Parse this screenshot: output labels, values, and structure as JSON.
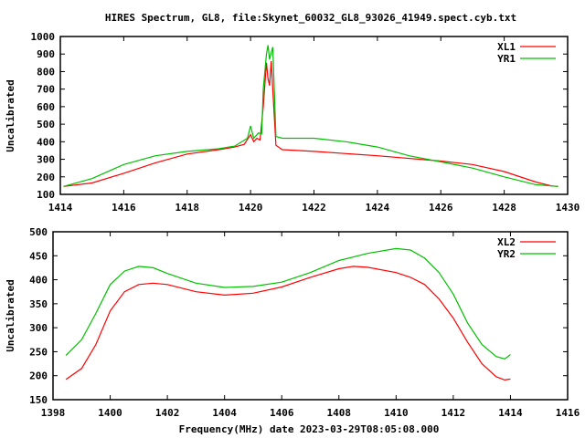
{
  "chart_data": [
    {
      "type": "line",
      "title": "HIRES Spectrum, GL8, file:Skynet_60032_GL8_93026_41949.spect.cyb.txt",
      "xlabel": "",
      "ylabel": "Uncalibrated",
      "xlim": [
        1414,
        1430
      ],
      "ylim": [
        100,
        1000
      ],
      "xticks": [
        1414,
        1416,
        1418,
        1420,
        1422,
        1424,
        1426,
        1428,
        1430
      ],
      "yticks": [
        100,
        200,
        300,
        400,
        500,
        600,
        700,
        800,
        900,
        1000
      ],
      "legend_position": "top-right",
      "series": [
        {
          "name": "XL1",
          "color": "#ff0000",
          "x": [
            1414.1,
            1415,
            1416,
            1417,
            1418,
            1419,
            1419.5,
            1419.8,
            1420,
            1420.1,
            1420.2,
            1420.3,
            1420.4,
            1420.5,
            1420.55,
            1420.6,
            1420.65,
            1420.7,
            1420.8,
            1421,
            1422,
            1424,
            1426,
            1427,
            1428,
            1429,
            1429.5,
            1429.7
          ],
          "y": [
            145,
            165,
            220,
            280,
            330,
            355,
            370,
            385,
            440,
            400,
            420,
            410,
            600,
            850,
            760,
            720,
            860,
            700,
            380,
            355,
            345,
            320,
            290,
            270,
            230,
            170,
            148,
            145
          ]
        },
        {
          "name": "YR1",
          "color": "#00c000",
          "x": [
            1414.1,
            1415,
            1416,
            1417,
            1418,
            1419,
            1419.5,
            1419.9,
            1420,
            1420.1,
            1420.25,
            1420.35,
            1420.4,
            1420.5,
            1420.55,
            1420.6,
            1420.7,
            1420.8,
            1421,
            1422,
            1423,
            1424,
            1425,
            1426,
            1427,
            1428,
            1429,
            1429.7
          ],
          "y": [
            145,
            190,
            270,
            320,
            345,
            360,
            375,
            420,
            490,
            420,
            450,
            445,
            700,
            900,
            950,
            870,
            940,
            430,
            420,
            420,
            400,
            370,
            320,
            285,
            250,
            200,
            155,
            145
          ]
        }
      ]
    },
    {
      "type": "line",
      "xlabel": "Frequency(MHz) date 2023-03-29T08:05:08.000",
      "ylabel": "Uncalibrated",
      "xlim": [
        1398,
        1416
      ],
      "ylim": [
        150,
        500
      ],
      "xticks": [
        1398,
        1400,
        1402,
        1404,
        1406,
        1408,
        1410,
        1412,
        1414,
        1416
      ],
      "yticks": [
        150,
        200,
        250,
        300,
        350,
        400,
        450,
        500
      ],
      "legend_position": "top-right",
      "series": [
        {
          "name": "XL2",
          "color": "#ff0000",
          "x": [
            1398.45,
            1399,
            1399.5,
            1400,
            1400.5,
            1401,
            1401.5,
            1402,
            1403,
            1404,
            1405,
            1406,
            1407,
            1408,
            1408.5,
            1409,
            1410,
            1410.5,
            1411,
            1411.5,
            1412,
            1412.5,
            1413,
            1413.5,
            1413.8,
            1414
          ],
          "y": [
            192,
            215,
            265,
            335,
            375,
            390,
            393,
            390,
            375,
            368,
            372,
            385,
            405,
            423,
            428,
            426,
            415,
            405,
            390,
            360,
            320,
            270,
            225,
            198,
            191,
            193
          ]
        },
        {
          "name": "YR2",
          "color": "#00c000",
          "x": [
            1398.45,
            1399,
            1399.5,
            1400,
            1400.5,
            1401,
            1401.5,
            1402,
            1403,
            1404,
            1405,
            1406,
            1407,
            1408,
            1409,
            1410,
            1410.5,
            1411,
            1411.5,
            1412,
            1412.5,
            1413,
            1413.5,
            1413.8,
            1414
          ],
          "y": [
            242,
            275,
            330,
            390,
            418,
            428,
            425,
            413,
            393,
            384,
            386,
            395,
            415,
            440,
            455,
            465,
            462,
            445,
            415,
            370,
            310,
            265,
            240,
            235,
            244
          ]
        }
      ]
    }
  ]
}
